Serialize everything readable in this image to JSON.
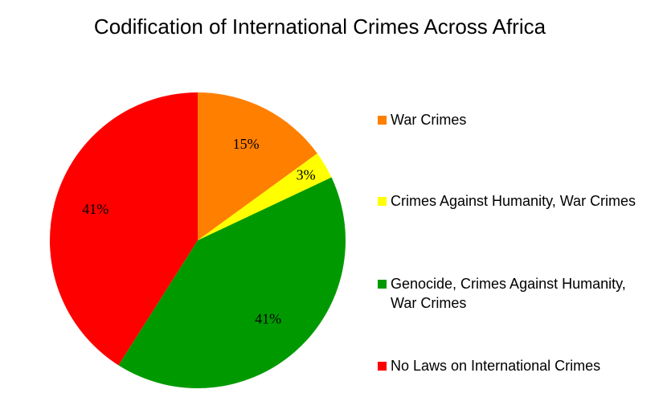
{
  "chart_data": {
    "type": "pie",
    "title": "Codification of International Crimes Across Africa",
    "categories": [
      "War Crimes",
      "Crimes Against Humanity, War Crimes",
      "Genocide, Crimes Against Humanity, War Crimes",
      "No Laws on International Crimes"
    ],
    "values": [
      15,
      3,
      41,
      41
    ],
    "value_labels": [
      "15%",
      "3%",
      "41%",
      "41%"
    ],
    "colors": [
      "#ff7f00",
      "#ffff00",
      "#009a00",
      "#ff0000"
    ],
    "legend": "right"
  }
}
